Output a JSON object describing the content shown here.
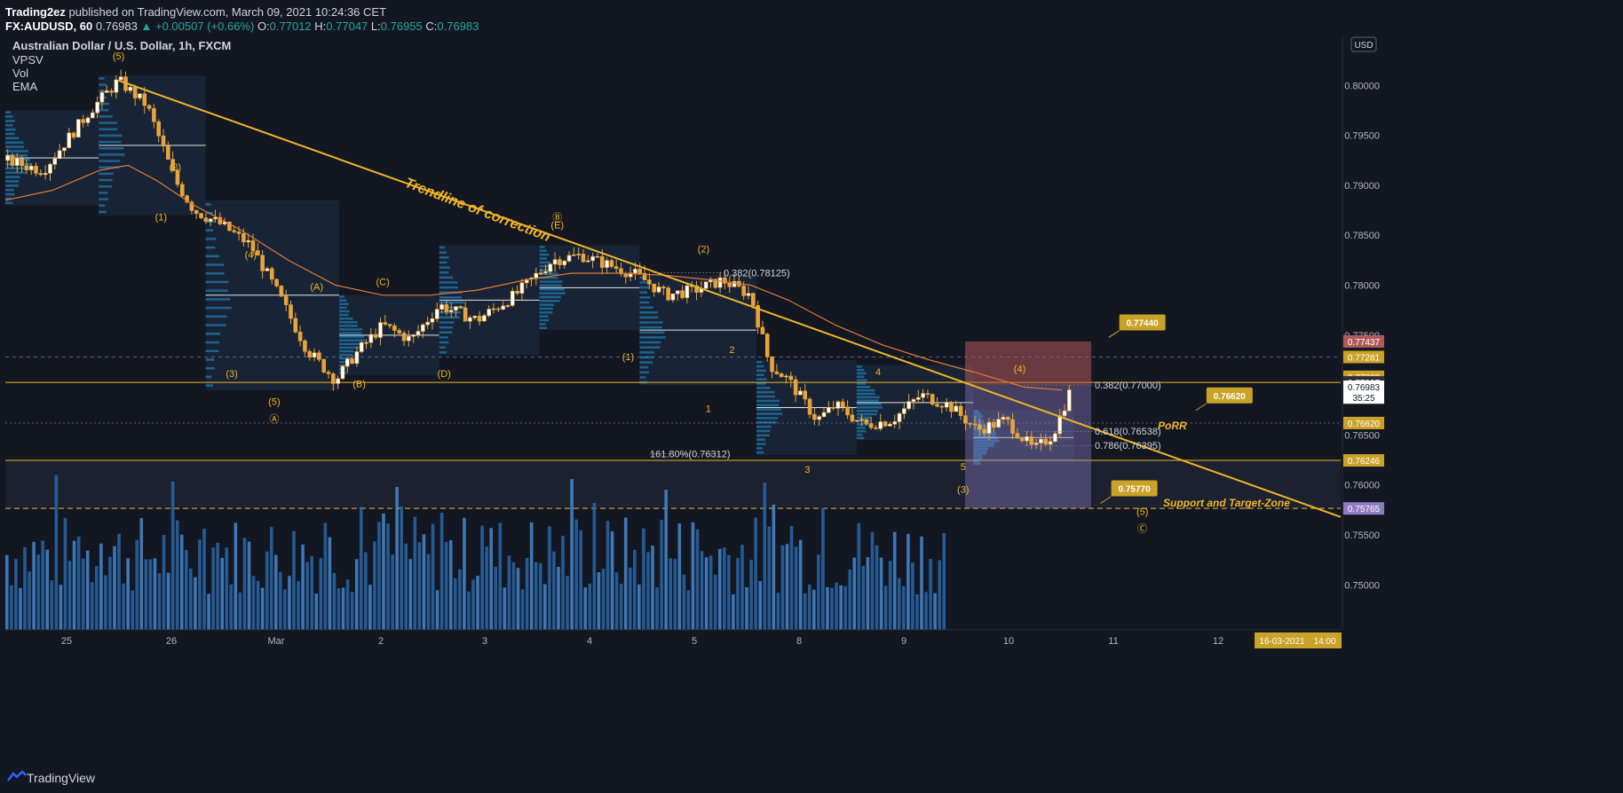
{
  "header": {
    "publisher": "Trading2ez",
    "published_text": "published on TradingView.com, March 09, 2021 10:24:36 CET",
    "symbol": "FX:AUDUSD, 60",
    "last": "0.76983",
    "change_arrow": "▲",
    "change": "+0.00507 (+0.66%)",
    "o_label": "O:",
    "o": "0.77012",
    "h_label": "H:",
    "h": "0.77047",
    "l_label": "L:",
    "l": "0.76955",
    "c_label": "C:",
    "c": "0.76983"
  },
  "legend": {
    "title": "Australian Dollar / U.S. Dollar, 1h, FXCM",
    "ind1": "VPSV",
    "ind2": "Vol",
    "ind3": "EMA"
  },
  "currency": "USD",
  "footer": {
    "brand": "TradingView",
    "brand_icon": "tradingview-logo-icon"
  },
  "colors": {
    "bg": "#131722",
    "up": "#ffffff",
    "candle": "#e8a33d",
    "ema": "#e07b39",
    "trend": "#f0b429",
    "vol": "#2b6cb0",
    "vol_light": "#4a90d9",
    "profile": "#1e5a8a",
    "zone": "#2a2e39",
    "red_box": "#b05a5a",
    "purple": "#8e7cc3",
    "label_gold": "#c9a227",
    "white_line": "#e0e3eb"
  },
  "chart_data": {
    "type": "candlestick",
    "title": "Australian Dollar / U.S. Dollar, 1h, FXCM",
    "yticks": [
      "0.80000",
      "0.79500",
      "0.79000",
      "0.78500",
      "0.78000",
      "0.77500",
      "0.77000",
      "0.76500",
      "0.76000",
      "0.75500",
      "0.75000"
    ],
    "ylim": [
      0.7455,
      0.805
    ],
    "xticks": [
      "25",
      "26",
      "Mar",
      "2",
      "3",
      "4",
      "5",
      "8",
      "9",
      "10",
      "11",
      "12"
    ],
    "price_path": [
      [
        0,
        0.7925
      ],
      [
        8,
        0.7915
      ],
      [
        18,
        0.7975
      ],
      [
        24,
        0.8005
      ],
      [
        30,
        0.798
      ],
      [
        36,
        0.7905
      ],
      [
        40,
        0.7875
      ],
      [
        46,
        0.786
      ],
      [
        52,
        0.784
      ],
      [
        58,
        0.779
      ],
      [
        64,
        0.7735
      ],
      [
        70,
        0.7705
      ],
      [
        74,
        0.773
      ],
      [
        80,
        0.776
      ],
      [
        86,
        0.7745
      ],
      [
        92,
        0.778
      ],
      [
        100,
        0.7765
      ],
      [
        108,
        0.779
      ],
      [
        116,
        0.7825
      ],
      [
        122,
        0.783
      ],
      [
        128,
        0.782
      ],
      [
        134,
        0.781
      ],
      [
        140,
        0.779
      ],
      [
        146,
        0.7795
      ],
      [
        152,
        0.7805
      ],
      [
        158,
        0.779
      ],
      [
        162,
        0.772
      ],
      [
        166,
        0.7705
      ],
      [
        172,
        0.7665
      ],
      [
        176,
        0.768
      ],
      [
        182,
        0.766
      ],
      [
        188,
        0.7665
      ],
      [
        194,
        0.769
      ],
      [
        200,
        0.768
      ],
      [
        206,
        0.7655
      ],
      [
        212,
        0.7665
      ],
      [
        218,
        0.7635
      ],
      [
        222,
        0.765
      ],
      [
        226,
        0.7698
      ]
    ],
    "ema_path": [
      [
        0,
        0.7885
      ],
      [
        10,
        0.7895
      ],
      [
        20,
        0.7915
      ],
      [
        26,
        0.792
      ],
      [
        32,
        0.7905
      ],
      [
        40,
        0.788
      ],
      [
        50,
        0.7855
      ],
      [
        60,
        0.7825
      ],
      [
        70,
        0.78
      ],
      [
        80,
        0.779
      ],
      [
        90,
        0.779
      ],
      [
        100,
        0.7795
      ],
      [
        110,
        0.7805
      ],
      [
        120,
        0.7812
      ],
      [
        130,
        0.7812
      ],
      [
        140,
        0.781
      ],
      [
        150,
        0.7805
      ],
      [
        158,
        0.78
      ],
      [
        166,
        0.7785
      ],
      [
        176,
        0.776
      ],
      [
        186,
        0.774
      ],
      [
        196,
        0.7725
      ],
      [
        206,
        0.7712
      ],
      [
        216,
        0.7698
      ],
      [
        224,
        0.7695
      ]
    ],
    "price_labels": [
      {
        "text": "0.77437",
        "price": 0.77437,
        "bg": "#b05a5a"
      },
      {
        "text": "0.77281",
        "price": 0.77281,
        "bg": "#c9a227"
      },
      {
        "text": "0.77083",
        "price": 0.77083,
        "bg": "#c9a227"
      },
      {
        "text": "0.77027",
        "price": 0.77027,
        "bg": "#2a2e39"
      },
      {
        "text": "0.76983",
        "price": 0.76983,
        "bg": "#ffffff"
      },
      {
        "text": "35:25",
        "price": 0.76875,
        "bg": "#ffffff"
      },
      {
        "text": "0.76620",
        "price": 0.7662,
        "bg": "#c9a227"
      },
      {
        "text": "0.76246",
        "price": 0.76246,
        "bg": "#c9a227"
      },
      {
        "text": "0.75765",
        "price": 0.75765,
        "bg": "#8e7cc3"
      }
    ],
    "callouts": [
      {
        "text": "0.77440",
        "price": 0.776,
        "xfrac": 0.815
      },
      {
        "text": "0.76620",
        "price": 0.7687,
        "xfrac": 0.88
      },
      {
        "text": "0.75770",
        "price": 0.7594,
        "xfrac": 0.809
      }
    ],
    "annotations": [
      {
        "text": "Trendline of correction",
        "kind": "trend_title"
      },
      {
        "text": "PoRR",
        "kind": "porr"
      },
      {
        "text": "Support and Target-Zone",
        "kind": "support"
      }
    ],
    "fib_labels": [
      {
        "text": "0.382(0.78125)",
        "price": 0.78125
      },
      {
        "text": "0.382(0.77000)",
        "price": 0.77
      },
      {
        "text": "0.618(0.76538)",
        "price": 0.76538
      },
      {
        "text": "0.786(0.76395)",
        "price": 0.76395
      },
      {
        "text": "161.80%(0.76312)",
        "price": 0.76312
      }
    ],
    "wave_labels": [
      {
        "text": "(5)",
        "t": 24,
        "price": 0.8026
      },
      {
        "text": "(2)",
        "t": 36,
        "price": 0.7915
      },
      {
        "text": "(1)",
        "t": 33,
        "price": 0.7865
      },
      {
        "text": "(4)",
        "t": 52,
        "price": 0.7827
      },
      {
        "text": "(3)",
        "t": 48,
        "price": 0.7708
      },
      {
        "text": "(5)",
        "t": 57,
        "price": 0.768
      },
      {
        "text": "Ⓐ",
        "t": 57,
        "price": 0.7663
      },
      {
        "text": "(A)",
        "t": 66,
        "price": 0.7795
      },
      {
        "text": "(B)",
        "t": 75,
        "price": 0.7698
      },
      {
        "text": "(C)",
        "t": 80,
        "price": 0.78
      },
      {
        "text": "(D)",
        "t": 93,
        "price": 0.7708
      },
      {
        "text": "(E)",
        "t": 117,
        "price": 0.7857
      },
      {
        "text": "Ⓑ",
        "t": 117,
        "price": 0.7865
      },
      {
        "text": "(2)",
        "t": 148,
        "price": 0.7833
      },
      {
        "text": "(1)",
        "t": 132,
        "price": 0.7725
      },
      {
        "text": "2",
        "t": 154,
        "price": 0.7732
      },
      {
        "text": "1",
        "t": 149,
        "price": 0.7673
      },
      {
        "text": "4",
        "t": 185,
        "price": 0.771
      },
      {
        "text": "3",
        "t": 170,
        "price": 0.7612
      },
      {
        "text": "5",
        "t": 203,
        "price": 0.7615
      },
      {
        "text": "(3)",
        "t": 203,
        "price": 0.7592
      },
      {
        "text": "(4)",
        "t": 215,
        "price": 0.7713
      },
      {
        "text": "(5)",
        "t": 241,
        "price": 0.757
      },
      {
        "text": "Ⓒ",
        "t": 241,
        "price": 0.7553
      }
    ],
    "date_box": {
      "text": "16-03-2021",
      "time": "14:00"
    },
    "grid": false
  }
}
